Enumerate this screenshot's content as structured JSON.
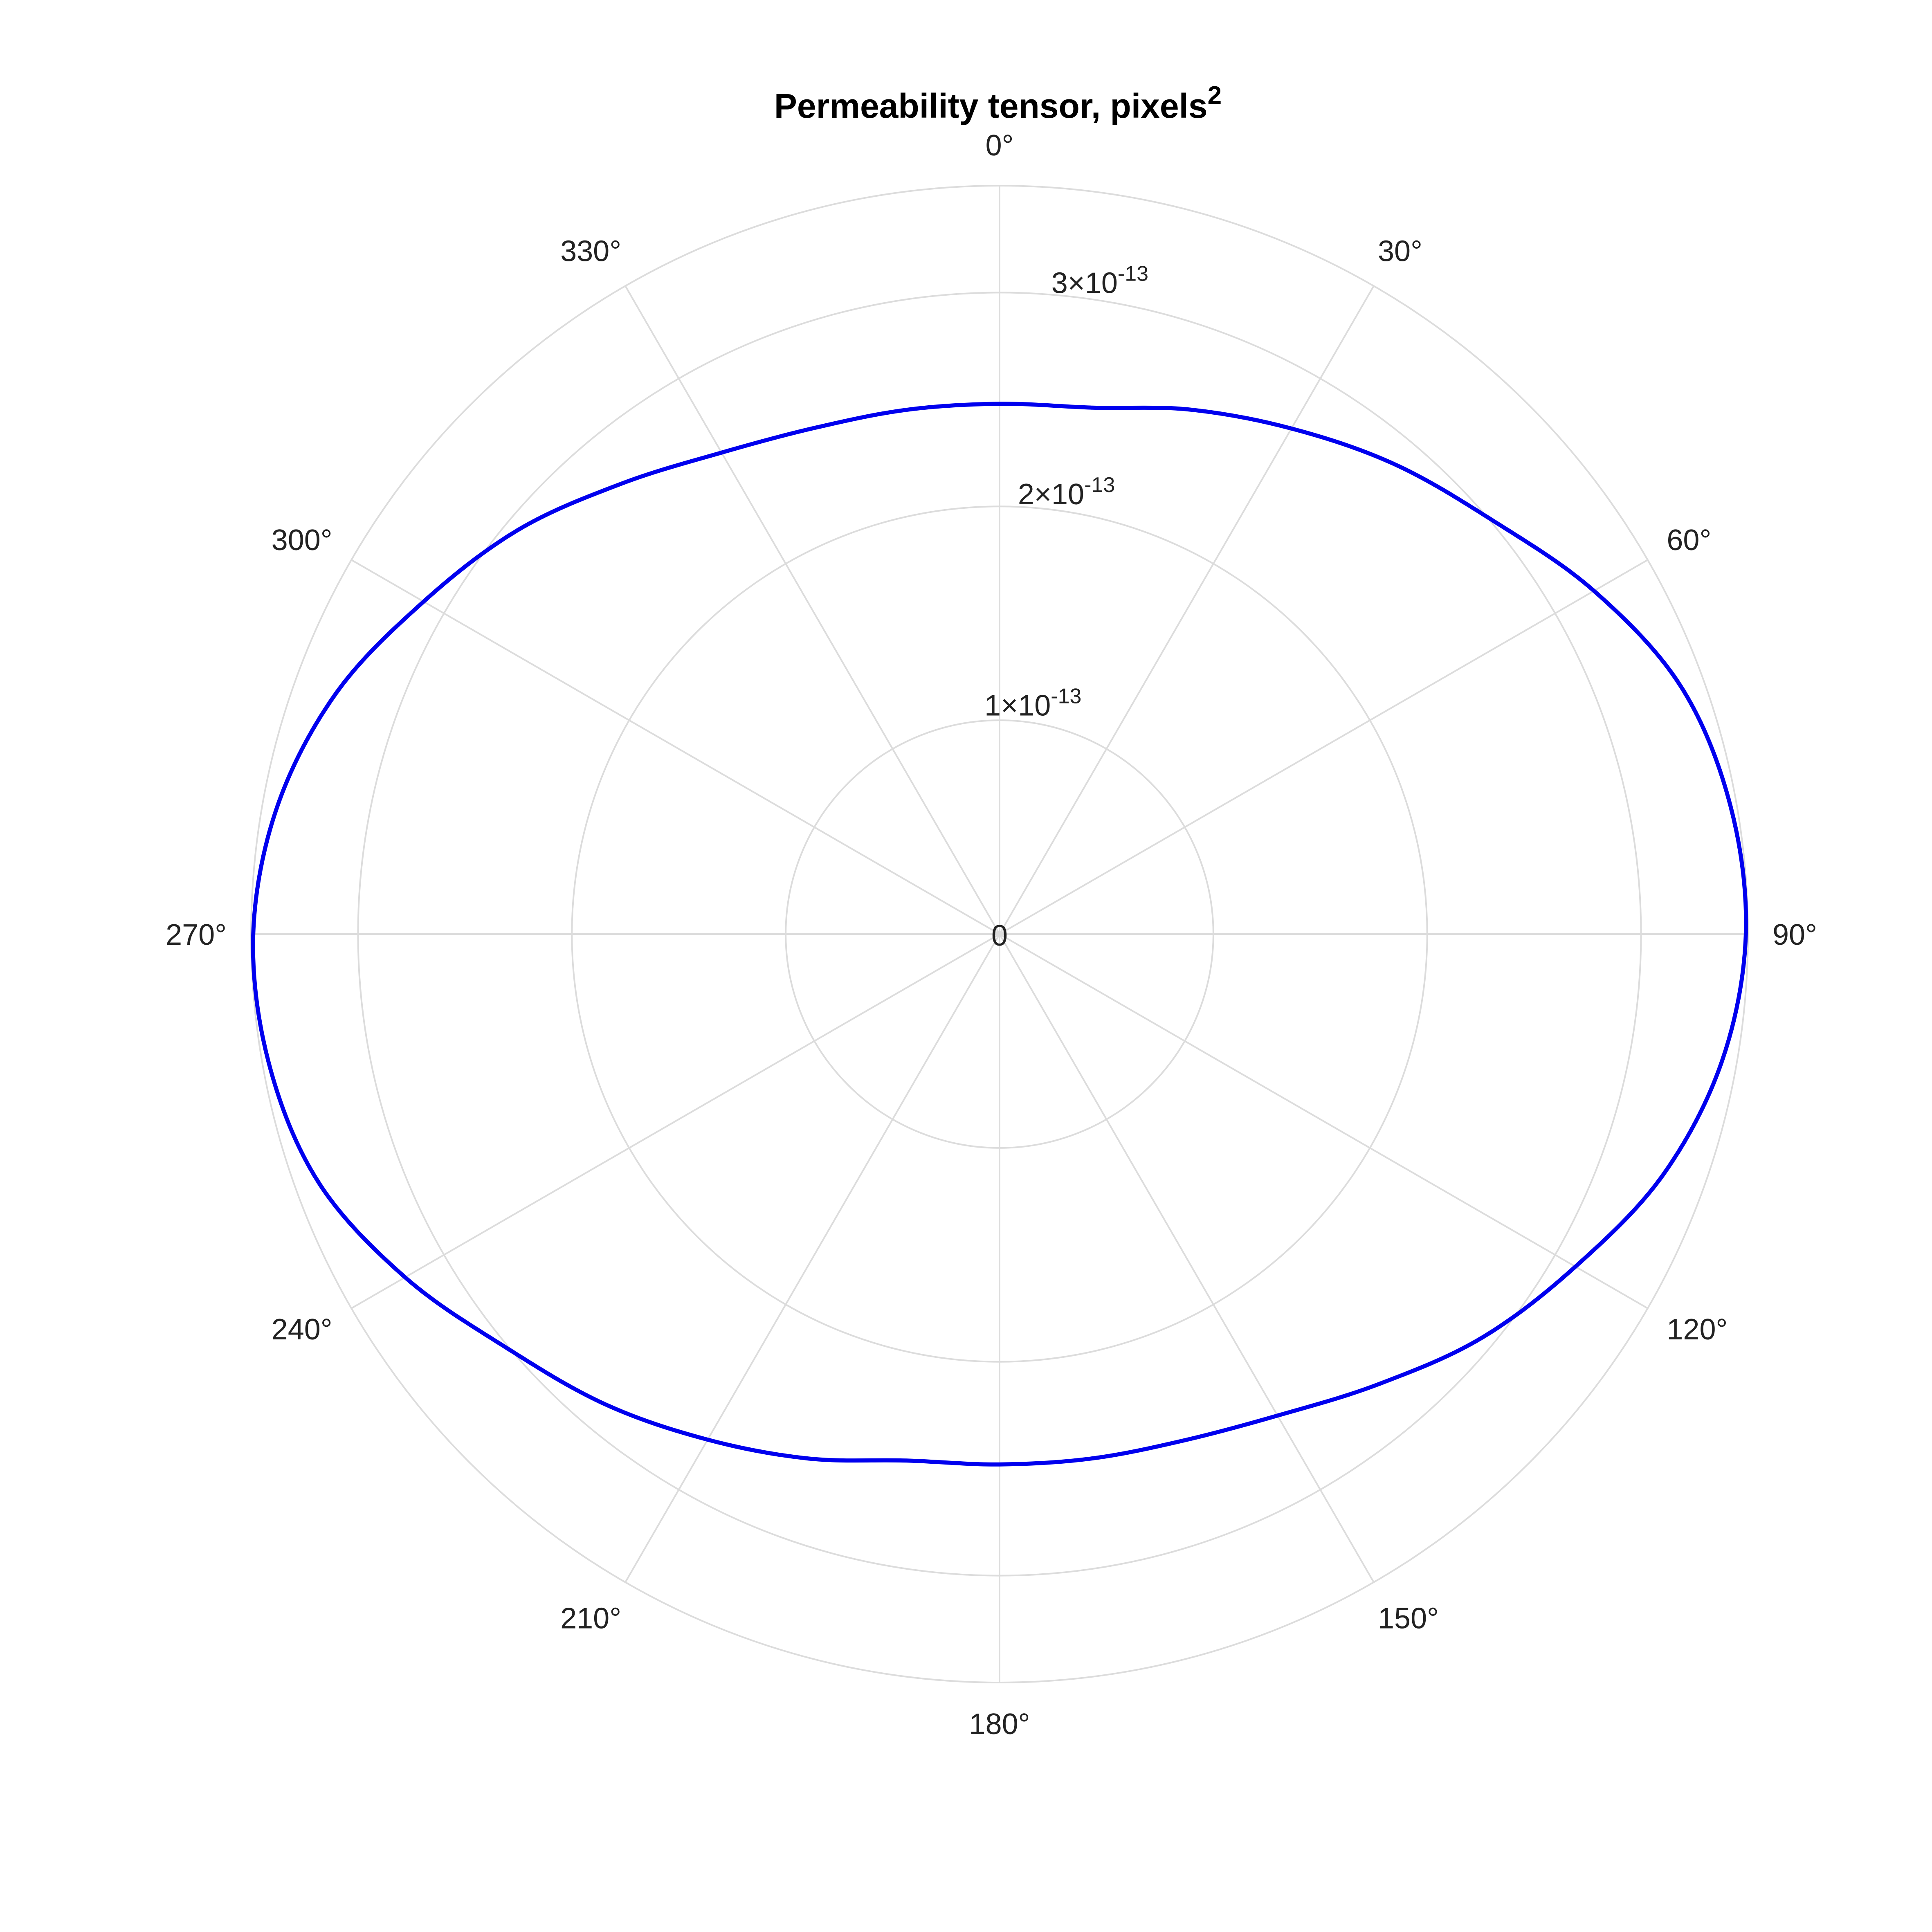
{
  "chart_data": {
    "type": "line",
    "projection": "polar",
    "title": "Permeability tensor, pixels",
    "title_superscript": "2",
    "theta_direction": "clockwise",
    "theta_zero": "top",
    "theta_ticks": [
      {
        "value": 0,
        "label": "0°"
      },
      {
        "value": 30,
        "label": "30°"
      },
      {
        "value": 60,
        "label": "60°"
      },
      {
        "value": 90,
        "label": "90°"
      },
      {
        "value": 120,
        "label": "120°"
      },
      {
        "value": 150,
        "label": "150°"
      },
      {
        "value": 180,
        "label": "180°"
      },
      {
        "value": 210,
        "label": "210°"
      },
      {
        "value": 240,
        "label": "240°"
      },
      {
        "value": 270,
        "label": "270°"
      },
      {
        "value": 300,
        "label": "300°"
      },
      {
        "value": 330,
        "label": "330°"
      }
    ],
    "r_ticks": [
      {
        "value": 0,
        "mantissa": "0",
        "exponent": ""
      },
      {
        "value": 1e-13,
        "mantissa": "1×10",
        "exponent": "-13"
      },
      {
        "value": 2e-13,
        "mantissa": "2×10",
        "exponent": "-13"
      },
      {
        "value": 3e-13,
        "mantissa": "3×10",
        "exponent": "-13"
      }
    ],
    "r_grid_max": 3.5e-13,
    "grid": true,
    "colors": {
      "series": "#0000ee",
      "grid": "#dcdcdc"
    },
    "series": [
      {
        "color": "#0000ee",
        "points": [
          {
            "theta": 0,
            "r": 2.48e-13
          },
          {
            "theta": 10,
            "r": 2.5e-13
          },
          {
            "theta": 20,
            "r": 2.61e-13
          },
          {
            "theta": 30,
            "r": 2.73e-13
          },
          {
            "theta": 40,
            "r": 2.87e-13
          },
          {
            "theta": 50,
            "r": 3.01e-13
          },
          {
            "theta": 60,
            "r": 3.21e-13
          },
          {
            "theta": 70,
            "r": 3.39e-13
          },
          {
            "theta": 80,
            "r": 3.47e-13
          },
          {
            "theta": 90,
            "r": 3.49e-13
          },
          {
            "theta": 100,
            "r": 3.43e-13
          },
          {
            "theta": 110,
            "r": 3.3e-13
          },
          {
            "theta": 120,
            "r": 3.11e-13
          },
          {
            "theta": 130,
            "r": 2.94e-13
          },
          {
            "theta": 140,
            "r": 2.75e-13
          },
          {
            "theta": 150,
            "r": 2.6e-13
          },
          {
            "theta": 160,
            "r": 2.52e-13
          },
          {
            "theta": 170,
            "r": 2.49e-13
          },
          {
            "theta": 180,
            "r": 2.48e-13
          },
          {
            "theta": 190,
            "r": 2.5e-13
          },
          {
            "theta": 200,
            "r": 2.61e-13
          },
          {
            "theta": 210,
            "r": 2.73e-13
          },
          {
            "theta": 220,
            "r": 2.87e-13
          },
          {
            "theta": 230,
            "r": 3.01e-13
          },
          {
            "theta": 240,
            "r": 3.21e-13
          },
          {
            "theta": 250,
            "r": 3.39e-13
          },
          {
            "theta": 260,
            "r": 3.47e-13
          },
          {
            "theta": 270,
            "r": 3.49e-13
          },
          {
            "theta": 280,
            "r": 3.43e-13
          },
          {
            "theta": 290,
            "r": 3.3e-13
          },
          {
            "theta": 300,
            "r": 3.11e-13
          },
          {
            "theta": 310,
            "r": 2.94e-13
          },
          {
            "theta": 320,
            "r": 2.75e-13
          },
          {
            "theta": 330,
            "r": 2.6e-13
          },
          {
            "theta": 340,
            "r": 2.52e-13
          },
          {
            "theta": 350,
            "r": 2.49e-13
          }
        ]
      }
    ]
  }
}
